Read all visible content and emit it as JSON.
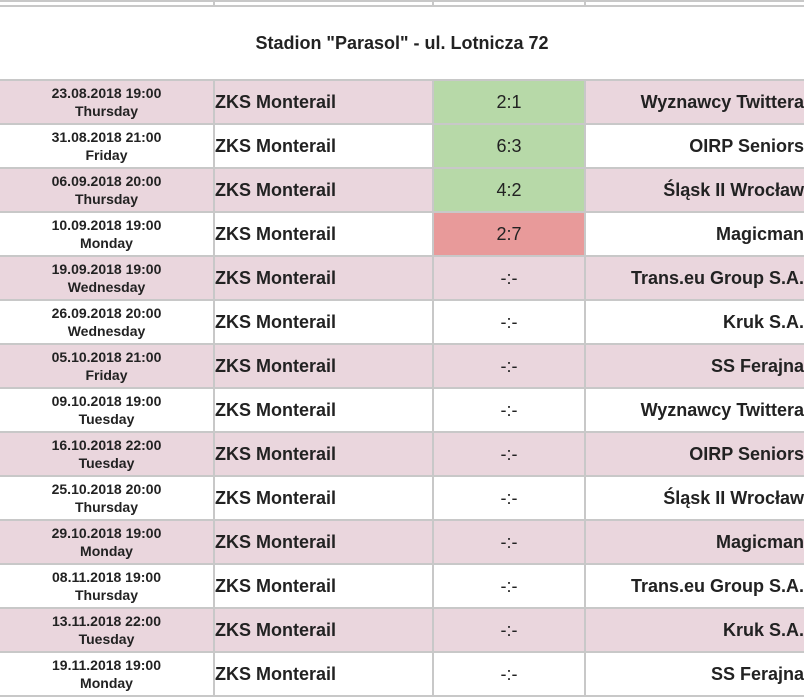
{
  "venue": "Stadion \"Parasol\" - ul. Lotnicza 72",
  "colors": {
    "alt_row": "#ead6dd",
    "win": "#b7d9a8",
    "loss": "#e89a9a",
    "border": "#c8c8c8"
  },
  "matches": [
    {
      "date": "23.08.2018 19:00",
      "day": "Thursday",
      "home": "ZKS Monterail",
      "score": "2:1",
      "result": "win",
      "away": "Wyznawcy Twittera"
    },
    {
      "date": "31.08.2018 21:00",
      "day": "Friday",
      "home": "ZKS Monterail",
      "score": "6:3",
      "result": "win",
      "away": "OIRP Seniors"
    },
    {
      "date": "06.09.2018 20:00",
      "day": "Thursday",
      "home": "ZKS Monterail",
      "score": "4:2",
      "result": "win",
      "away": "Śląsk II Wrocław"
    },
    {
      "date": "10.09.2018 19:00",
      "day": "Monday",
      "home": "ZKS Monterail",
      "score": "2:7",
      "result": "loss",
      "away": "Magicman"
    },
    {
      "date": "19.09.2018 19:00",
      "day": "Wednesday",
      "home": "ZKS Monterail",
      "score": "-:-",
      "result": "none",
      "away": "Trans.eu Group S.A."
    },
    {
      "date": "26.09.2018 20:00",
      "day": "Wednesday",
      "home": "ZKS Monterail",
      "score": "-:-",
      "result": "none",
      "away": "Kruk S.A."
    },
    {
      "date": "05.10.2018 21:00",
      "day": "Friday",
      "home": "ZKS Monterail",
      "score": "-:-",
      "result": "none",
      "away": "SS Ferajna"
    },
    {
      "date": "09.10.2018 19:00",
      "day": "Tuesday",
      "home": "ZKS Monterail",
      "score": "-:-",
      "result": "none",
      "away": "Wyznawcy Twittera"
    },
    {
      "date": "16.10.2018 22:00",
      "day": "Tuesday",
      "home": "ZKS Monterail",
      "score": "-:-",
      "result": "none",
      "away": "OIRP Seniors"
    },
    {
      "date": "25.10.2018 20:00",
      "day": "Thursday",
      "home": "ZKS Monterail",
      "score": "-:-",
      "result": "none",
      "away": "Śląsk II Wrocław"
    },
    {
      "date": "29.10.2018 19:00",
      "day": "Monday",
      "home": "ZKS Monterail",
      "score": "-:-",
      "result": "none",
      "away": "Magicman"
    },
    {
      "date": "08.11.2018 19:00",
      "day": "Thursday",
      "home": "ZKS Monterail",
      "score": "-:-",
      "result": "none",
      "away": "Trans.eu Group S.A."
    },
    {
      "date": "13.11.2018 22:00",
      "day": "Tuesday",
      "home": "ZKS Monterail",
      "score": "-:-",
      "result": "none",
      "away": "Kruk S.A."
    },
    {
      "date": "19.11.2018 19:00",
      "day": "Monday",
      "home": "ZKS Monterail",
      "score": "-:-",
      "result": "none",
      "away": "SS Ferajna"
    }
  ]
}
